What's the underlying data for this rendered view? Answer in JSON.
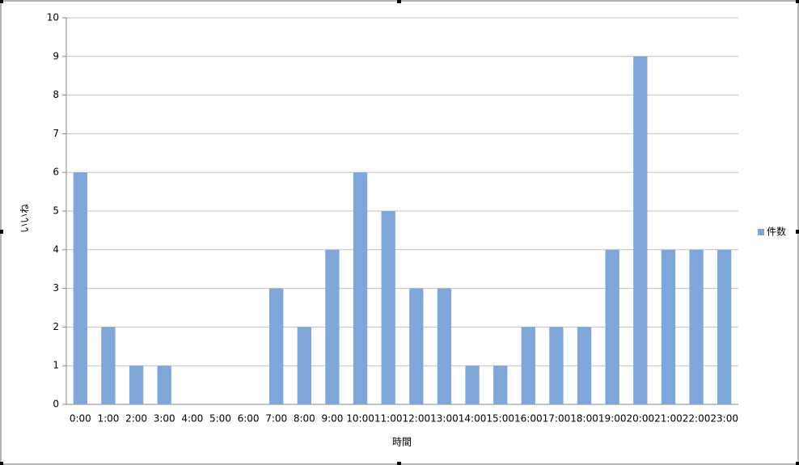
{
  "chart_data": {
    "type": "bar",
    "x_label": "時間",
    "y_label": "いいね",
    "categories": [
      "0:00",
      "1:00",
      "2:00",
      "3:00",
      "4:00",
      "5:00",
      "6:00",
      "7:00",
      "8:00",
      "9:00",
      "10:00",
      "11:00",
      "12:00",
      "13:00",
      "14:00",
      "15:00",
      "16:00",
      "17:00",
      "18:00",
      "19:00",
      "20:00",
      "21:00",
      "22:00",
      "23:00"
    ],
    "series": [
      {
        "name": "件数",
        "color": "#7ea6d8",
        "values": [
          6,
          2,
          1,
          1,
          0,
          0,
          0,
          3,
          2,
          4,
          6,
          5,
          3,
          3,
          1,
          1,
          2,
          2,
          2,
          4,
          9,
          4,
          4,
          4
        ]
      }
    ],
    "ylim": [
      0,
      10
    ],
    "yticks": [
      0,
      1,
      2,
      3,
      4,
      5,
      6,
      7,
      8,
      9,
      10
    ],
    "grid": true,
    "legend": "right"
  }
}
